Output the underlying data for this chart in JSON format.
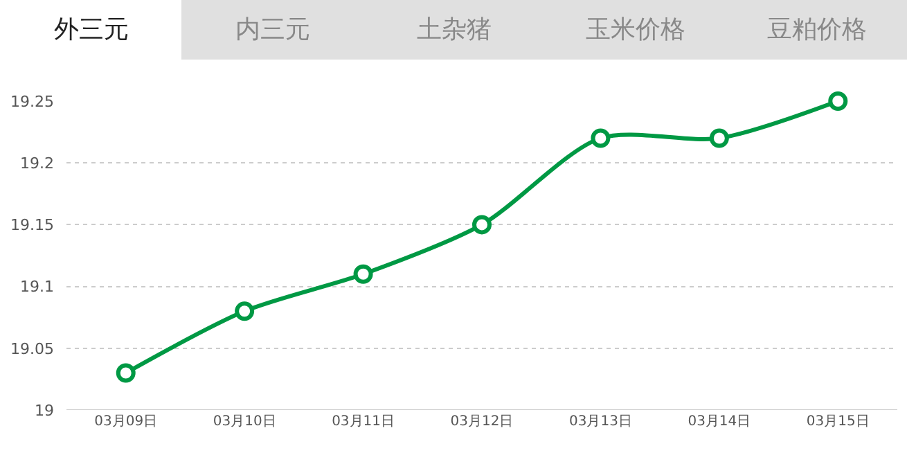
{
  "chart_data": {
    "type": "line",
    "annotations": [
      "外三元",
      "内三元",
      "土杂猪",
      "玉米价格",
      "豆粕价格"
    ],
    "categories": [
      "03月09日",
      "03月10日",
      "03月11日",
      "03月12日",
      "03月13日",
      "03月14日",
      "03月15日"
    ],
    "series": [
      {
        "color": "#009944",
        "values": [
          19.03,
          19.08,
          19.11,
          19.15,
          19.22,
          19.22,
          19.25
        ]
      }
    ],
    "ylim": [
      19,
      19.25
    ],
    "yticks": [
      19,
      19.05,
      19.1,
      19.15,
      19.2,
      19.25
    ],
    "grid": "y",
    "marker": "circle",
    "line_style": "solid"
  }
}
